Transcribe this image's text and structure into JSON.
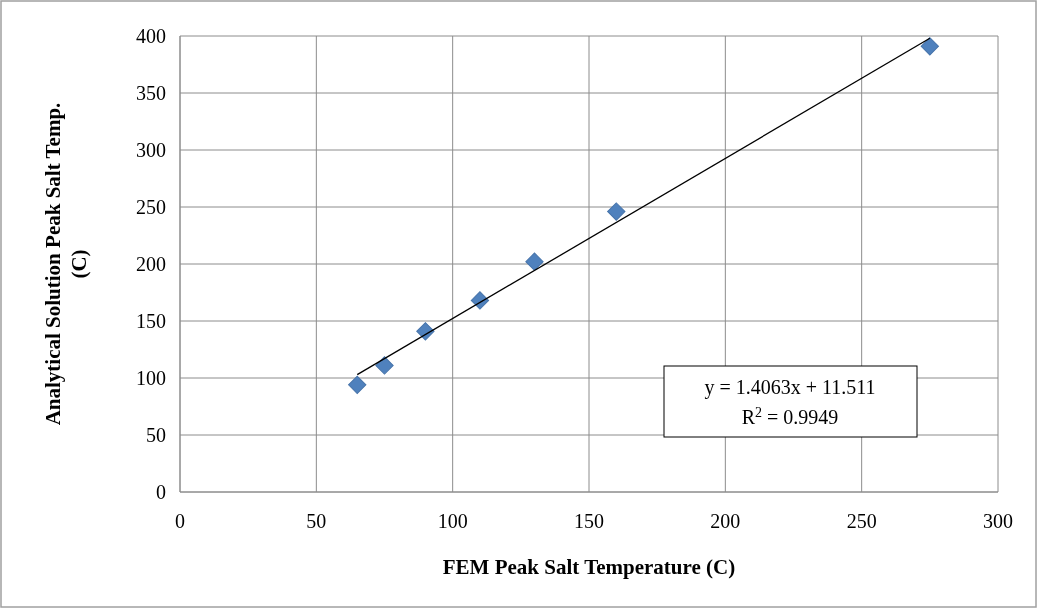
{
  "chart_data": {
    "type": "scatter",
    "xlabel": "FEM Peak Salt Temperature (C)",
    "ylabel": "Analytical Solution Peak Salt Temp. (C)",
    "xlim": [
      0,
      300
    ],
    "xticks": [
      0,
      50,
      100,
      150,
      200,
      250,
      300
    ],
    "ylim": [
      0,
      400
    ],
    "yticks": [
      0,
      50,
      100,
      150,
      200,
      250,
      300,
      350,
      400
    ],
    "grid": true,
    "marker": "diamond",
    "series": [
      {
        "color": "#4f81bd",
        "x": [
          65,
          75,
          90,
          110,
          130,
          160,
          275
        ],
        "values": [
          94,
          111,
          141,
          168,
          202,
          246,
          391
        ]
      },
      {
        "type": "line",
        "color": "#000000",
        "marker": "none",
        "x": [
          65,
          275
        ],
        "values": [
          103,
          398
        ]
      }
    ],
    "annotations": [
      "y = 1.4063x + 11.511",
      "R$^{2}$ = 0.9949"
    ]
  }
}
